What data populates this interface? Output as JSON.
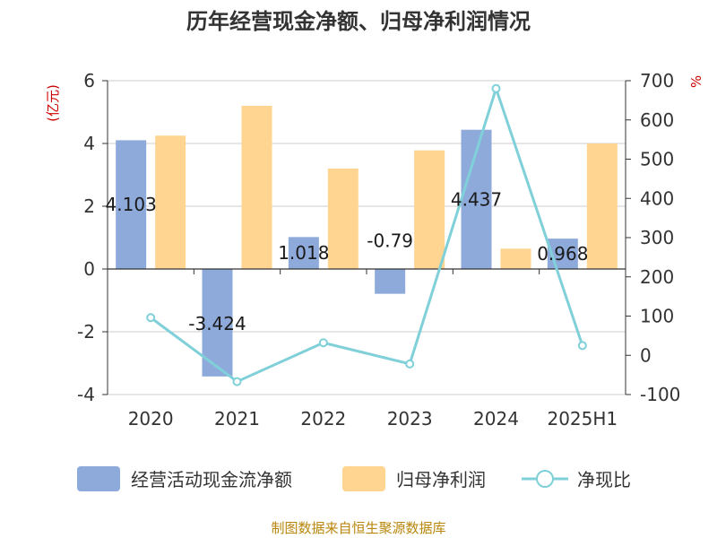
{
  "chart_data": {
    "type": "bar",
    "title": "历年经营现金净额、归母净利润情况",
    "categories": [
      "2020",
      "2021",
      "2022",
      "2023",
      "2024",
      "2025H1"
    ],
    "series": [
      {
        "name": "经营活动现金流净额",
        "type": "bar",
        "axis": "left",
        "color": "#8eaadb",
        "values": [
          4.103,
          -3.424,
          1.018,
          -0.79,
          4.437,
          0.968
        ],
        "labels": [
          "4.103",
          "-3.424",
          "1.018",
          "-0.79",
          "4.437",
          "0.968"
        ]
      },
      {
        "name": "归母净利润",
        "type": "bar",
        "axis": "left",
        "color": "#ffd591",
        "values": [
          4.25,
          5.2,
          3.2,
          3.78,
          0.65,
          4.0
        ]
      },
      {
        "name": "净现比",
        "type": "line",
        "axis": "right",
        "color": "#7fd0d8",
        "values": [
          96,
          -67,
          32,
          -22,
          680,
          25
        ]
      }
    ],
    "y_left": {
      "unit": "(亿元)",
      "min": -4,
      "max": 6,
      "ticks": [
        "6",
        "4",
        "2",
        "0",
        "-2",
        "-4"
      ]
    },
    "y_right": {
      "unit": "%",
      "min": -100,
      "max": 700,
      "ticks": [
        "700",
        "600",
        "500",
        "400",
        "300",
        "200",
        "100",
        "0",
        "-100"
      ]
    },
    "grid": true,
    "legend_position": "bottom"
  },
  "source": "制图数据来自恒生聚源数据库"
}
